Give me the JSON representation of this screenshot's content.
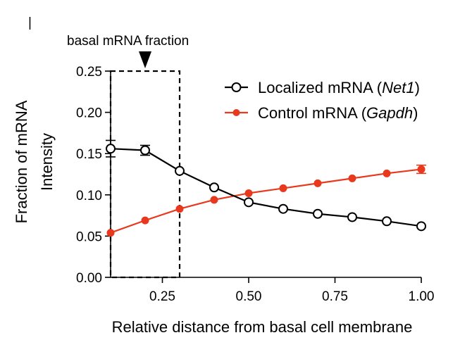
{
  "chart_data": {
    "type": "line",
    "panel_marker": "|",
    "x": [
      0.1,
      0.2,
      0.3,
      0.4,
      0.5,
      0.6,
      0.7,
      0.8,
      0.9,
      1.0
    ],
    "series": [
      {
        "name": "Localized mRNA (Net1)",
        "name_parts": [
          "Localized mRNA (",
          "Net1",
          ")"
        ],
        "values": [
          0.156,
          0.154,
          0.129,
          0.109,
          0.091,
          0.083,
          0.077,
          0.073,
          0.068,
          0.062
        ],
        "errors": [
          0.01,
          0.006,
          0.003,
          0.002,
          0.002,
          0.002,
          0.002,
          0.002,
          0.002,
          0.002
        ],
        "color": "#000000",
        "marker": "open-circle"
      },
      {
        "name": "Control mRNA (Gapdh)",
        "name_parts": [
          "Control mRNA (",
          "Gapdh",
          ")"
        ],
        "values": [
          0.054,
          0.069,
          0.083,
          0.094,
          0.102,
          0.108,
          0.114,
          0.12,
          0.126,
          0.131
        ],
        "errors": [
          0.002,
          0.002,
          0.002,
          0.002,
          0.002,
          0.002,
          0.002,
          0.002,
          0.002,
          0.005
        ],
        "color": "#e8381d",
        "marker": "filled-circle"
      }
    ],
    "xlabel": "Relative distance from basal cell membrane",
    "ylabel_lines": [
      "Fraction of mRNA",
      "Intensity"
    ],
    "xlim": [
      0.1,
      1.0
    ],
    "ylim": [
      0.0,
      0.25
    ],
    "xticks": [
      0.25,
      0.5,
      0.75,
      1.0
    ],
    "xtick_labels": [
      "0.25",
      "0.50",
      "0.75",
      "1.00"
    ],
    "yticks": [
      0.0,
      0.05,
      0.1,
      0.15,
      0.2,
      0.25
    ],
    "ytick_labels": [
      "0.00",
      "0.05",
      "0.10",
      "0.15",
      "0.20",
      "0.25"
    ],
    "annotation": {
      "text": "basal mRNA fraction",
      "box_x": [
        0.1,
        0.3
      ],
      "box_y": [
        0.0,
        0.25
      ],
      "arrow_x": 0.2
    },
    "legend_position": "top-right",
    "grid": false
  }
}
